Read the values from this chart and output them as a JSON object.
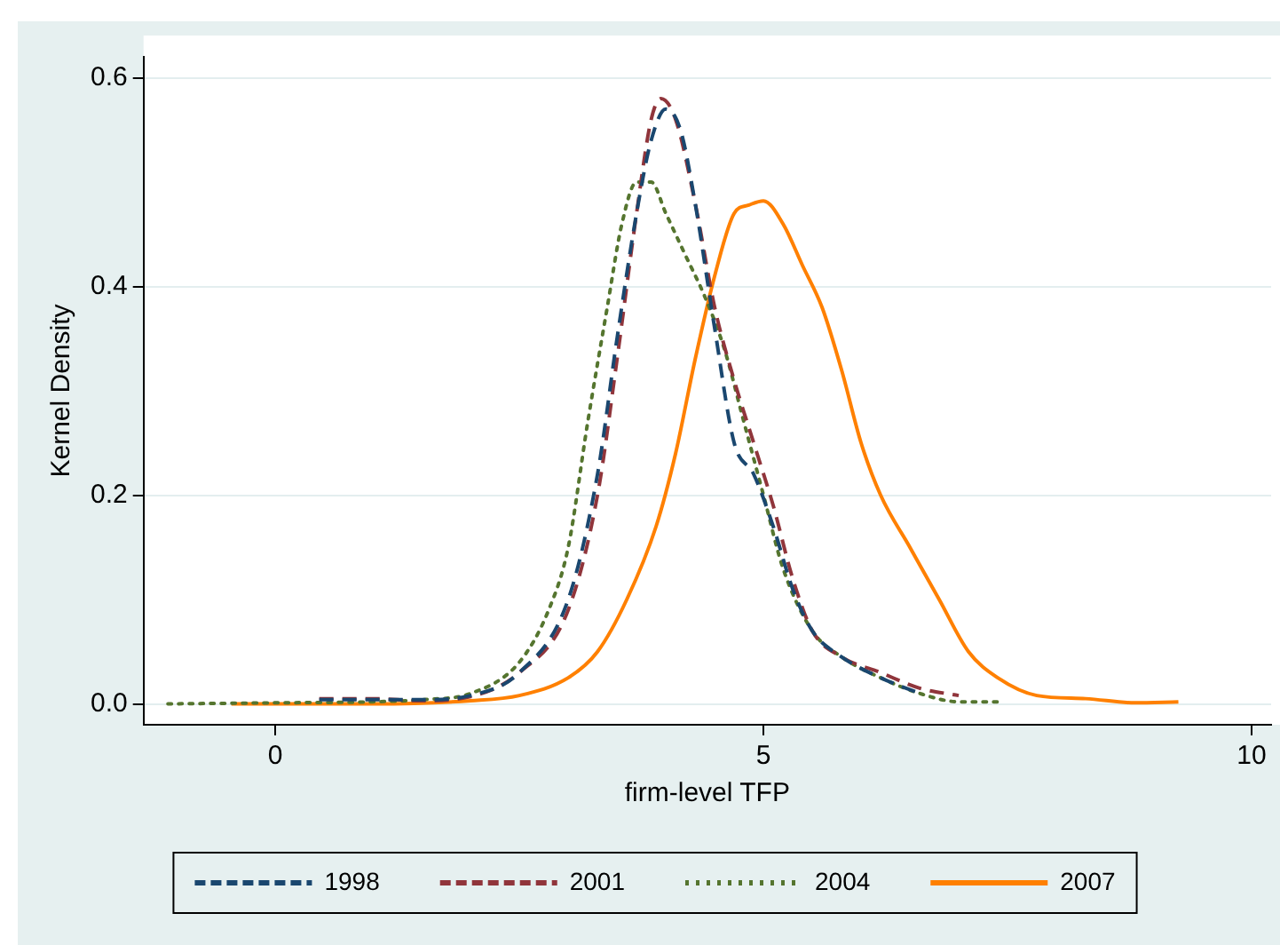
{
  "chart_data": {
    "type": "line",
    "xlabel": "firm-level TFP",
    "ylabel": "Kernel Density",
    "xlim": [
      -1.35,
      10.2
    ],
    "ylim": [
      -0.02,
      0.62
    ],
    "xticks": [
      0,
      5,
      10
    ],
    "yticks": [
      {
        "value": 0,
        "label": "0.0"
      },
      {
        "value": 0.2,
        "label": "0.2"
      },
      {
        "value": 0.4,
        "label": "0.4"
      },
      {
        "value": 0.6,
        "label": "0.6"
      }
    ],
    "grid": "y",
    "legend": "bottom",
    "marker": "none",
    "series": [
      {
        "name": "1998",
        "color": "#1a476f",
        "line_style": "dashed",
        "x": [
          0.45,
          1.0,
          1.5,
          2.0,
          2.5,
          3.0,
          3.3,
          3.5,
          3.7,
          3.85,
          4.0,
          4.15,
          4.3,
          4.5,
          4.7,
          4.9,
          5.1,
          5.3,
          5.5,
          5.8,
          6.2,
          6.6
        ],
        "values": [
          0.004,
          0.004,
          0.004,
          0.008,
          0.03,
          0.1,
          0.22,
          0.35,
          0.47,
          0.54,
          0.57,
          0.55,
          0.48,
          0.36,
          0.25,
          0.22,
          0.17,
          0.11,
          0.07,
          0.045,
          0.025,
          0.01
        ]
      },
      {
        "name": "2001",
        "color": "#90353b",
        "line_style": "dashed",
        "x": [
          0.45,
          1.0,
          1.5,
          2.0,
          2.5,
          3.0,
          3.3,
          3.5,
          3.7,
          3.85,
          3.95,
          4.1,
          4.3,
          4.5,
          4.7,
          4.9,
          5.1,
          5.3,
          5.5,
          5.8,
          6.2,
          6.6,
          7.0
        ],
        "values": [
          0.005,
          0.005,
          0.003,
          0.007,
          0.03,
          0.09,
          0.2,
          0.33,
          0.47,
          0.56,
          0.58,
          0.56,
          0.48,
          0.38,
          0.31,
          0.25,
          0.19,
          0.12,
          0.07,
          0.045,
          0.03,
          0.015,
          0.008
        ]
      },
      {
        "name": "2004",
        "color": "#55752f",
        "line_style": "dotted",
        "x": [
          -1.1,
          0,
          1.0,
          1.5,
          2.0,
          2.5,
          2.8,
          3.0,
          3.2,
          3.4,
          3.55,
          3.7,
          3.85,
          4.0,
          4.2,
          4.4,
          4.6,
          4.8,
          5.0,
          5.2,
          5.5,
          5.8,
          6.2,
          6.6,
          7.0,
          7.43
        ],
        "values": [
          0,
          0.001,
          0.002,
          0.004,
          0.01,
          0.04,
          0.09,
          0.15,
          0.27,
          0.38,
          0.46,
          0.5,
          0.5,
          0.47,
          0.43,
          0.39,
          0.34,
          0.27,
          0.2,
          0.13,
          0.07,
          0.045,
          0.025,
          0.01,
          0.002,
          0.002
        ]
      },
      {
        "name": "2007",
        "color": "#ff8000",
        "line_style": "solid",
        "x": [
          -0.45,
          1,
          2,
          2.5,
          3.0,
          3.3,
          3.6,
          3.9,
          4.1,
          4.3,
          4.5,
          4.7,
          4.85,
          5.0,
          5.2,
          5.4,
          5.6,
          5.8,
          6.0,
          6.2,
          6.5,
          6.8,
          7.1,
          7.4,
          7.8,
          8.3,
          8.8,
          9.25
        ],
        "values": [
          0,
          0,
          0.003,
          0.008,
          0.025,
          0.05,
          0.1,
          0.17,
          0.24,
          0.33,
          0.41,
          0.47,
          0.478,
          0.482,
          0.46,
          0.42,
          0.38,
          0.32,
          0.25,
          0.2,
          0.15,
          0.1,
          0.05,
          0.025,
          0.008,
          0.005,
          0.001,
          0.002
        ]
      }
    ]
  }
}
